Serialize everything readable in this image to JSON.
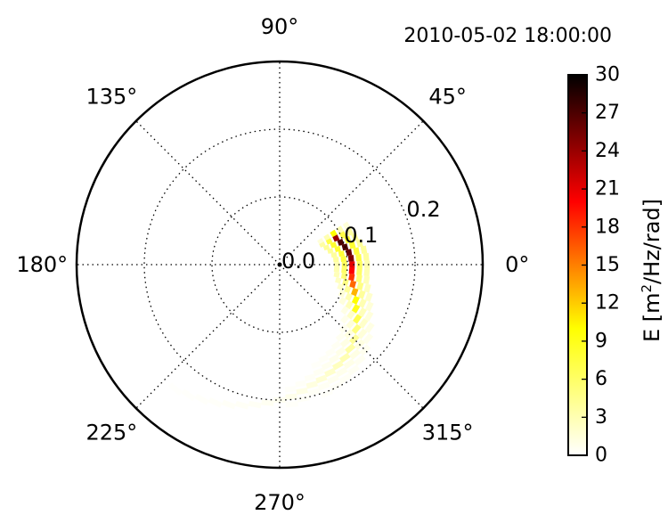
{
  "figure": {
    "timestamp": "2010-05-02 18:00:00"
  },
  "chart_data": {
    "type": "heatmap",
    "subtype": "polar-spectrum",
    "title": "2010-05-02 18:00:00",
    "angular_ticks": [
      {
        "deg": 0,
        "label": "0°"
      },
      {
        "deg": 45,
        "label": "45°"
      },
      {
        "deg": 90,
        "label": "90°"
      },
      {
        "deg": 135,
        "label": "135°"
      },
      {
        "deg": 180,
        "label": "180°"
      },
      {
        "deg": 225,
        "label": "225°"
      },
      {
        "deg": 270,
        "label": "270°"
      },
      {
        "deg": 315,
        "label": "315°"
      }
    ],
    "radial_ticks": [
      {
        "value": 0.0,
        "label": "0.0"
      },
      {
        "value": 0.1,
        "label": "0.1"
      },
      {
        "value": 0.2,
        "label": "0.2"
      }
    ],
    "rmax": 0.3,
    "grid": true,
    "colormap": "hot_r",
    "colorbar": {
      "label_text": "E [m",
      "label_sup": "2",
      "label_rest": "/Hz/rad]",
      "vmin": 0,
      "vmax": 30,
      "ticks": [
        "0",
        "3",
        "6",
        "9",
        "12",
        "15",
        "18",
        "21",
        "24",
        "27",
        "30"
      ],
      "placement": "right"
    },
    "energy_cells": [
      {
        "theta": 30,
        "r": 0.092,
        "E": 10
      },
      {
        "theta": 25,
        "r": 0.092,
        "E": 24
      },
      {
        "theta": 20,
        "r": 0.096,
        "E": 27
      },
      {
        "theta": 15,
        "r": 0.1,
        "E": 27
      },
      {
        "theta": 10,
        "r": 0.104,
        "E": 26
      },
      {
        "theta": 5,
        "r": 0.106,
        "E": 25
      },
      {
        "theta": 0,
        "r": 0.107,
        "E": 21
      },
      {
        "theta": -5,
        "r": 0.107,
        "E": 20
      },
      {
        "theta": -10,
        "r": 0.108,
        "E": 18
      },
      {
        "theta": -15,
        "r": 0.112,
        "E": 16
      },
      {
        "theta": -20,
        "r": 0.118,
        "E": 13
      },
      {
        "theta": -25,
        "r": 0.124,
        "E": 10
      },
      {
        "theta": -30,
        "r": 0.13,
        "E": 9
      },
      {
        "theta": -35,
        "r": 0.14,
        "E": 7
      },
      {
        "theta": -40,
        "r": 0.148,
        "E": 5
      },
      {
        "theta": -45,
        "r": 0.156,
        "E": 4
      },
      {
        "theta": -50,
        "r": 0.162,
        "E": 3.5
      },
      {
        "theta": -55,
        "r": 0.168,
        "E": 3
      },
      {
        "theta": -60,
        "r": 0.172,
        "E": 2.5
      },
      {
        "theta": -65,
        "r": 0.176,
        "E": 2
      },
      {
        "theta": -70,
        "r": 0.18,
        "E": 1.6
      },
      {
        "theta": -75,
        "r": 0.184,
        "E": 1.2
      },
      {
        "theta": -80,
        "r": 0.19,
        "E": 1.0
      },
      {
        "theta": -85,
        "r": 0.196,
        "E": 0.8
      },
      {
        "theta": -90,
        "r": 0.2,
        "E": 0.6
      },
      {
        "theta": -95,
        "r": 0.205,
        "E": 0.5
      },
      {
        "theta": -100,
        "r": 0.21,
        "E": 0.4
      },
      {
        "theta": -105,
        "r": 0.215,
        "E": 0.35
      },
      {
        "theta": -110,
        "r": 0.22,
        "E": 0.3
      },
      {
        "theta": -115,
        "r": 0.225,
        "E": 0.25
      },
      {
        "theta": -120,
        "r": 0.23,
        "E": 0.2
      },
      {
        "theta": -125,
        "r": 0.235,
        "E": 0.15
      },
      {
        "theta": -130,
        "r": 0.24,
        "E": 0.12
      }
    ]
  }
}
